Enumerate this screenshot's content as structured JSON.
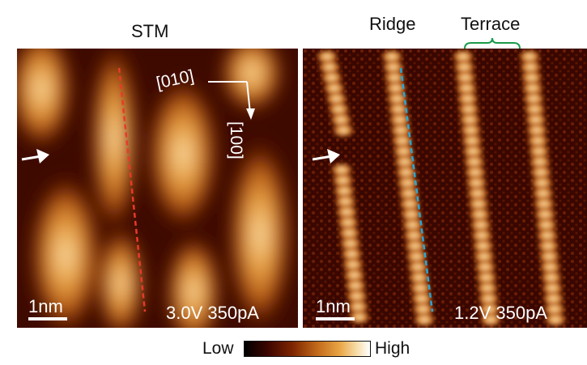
{
  "titles": {
    "stm": "STM",
    "ridge": "Ridge",
    "terrace": "Terrace"
  },
  "left_panel": {
    "scale_label": "1nm",
    "bias_current": "3.0V 350pA",
    "direction_a": "[010]",
    "direction_b": "[100]"
  },
  "right_panel": {
    "scale_label": "1nm",
    "bias_current": "1.2V 350pA"
  },
  "colorbar": {
    "low": "Low",
    "high": "High"
  },
  "colors": {
    "marker_left": "#e83a2a",
    "marker_right": "#29a7d6",
    "terrace_bracket": "#1a9a4a",
    "dark": "#1a0200",
    "bright": "#f8e6c0"
  }
}
